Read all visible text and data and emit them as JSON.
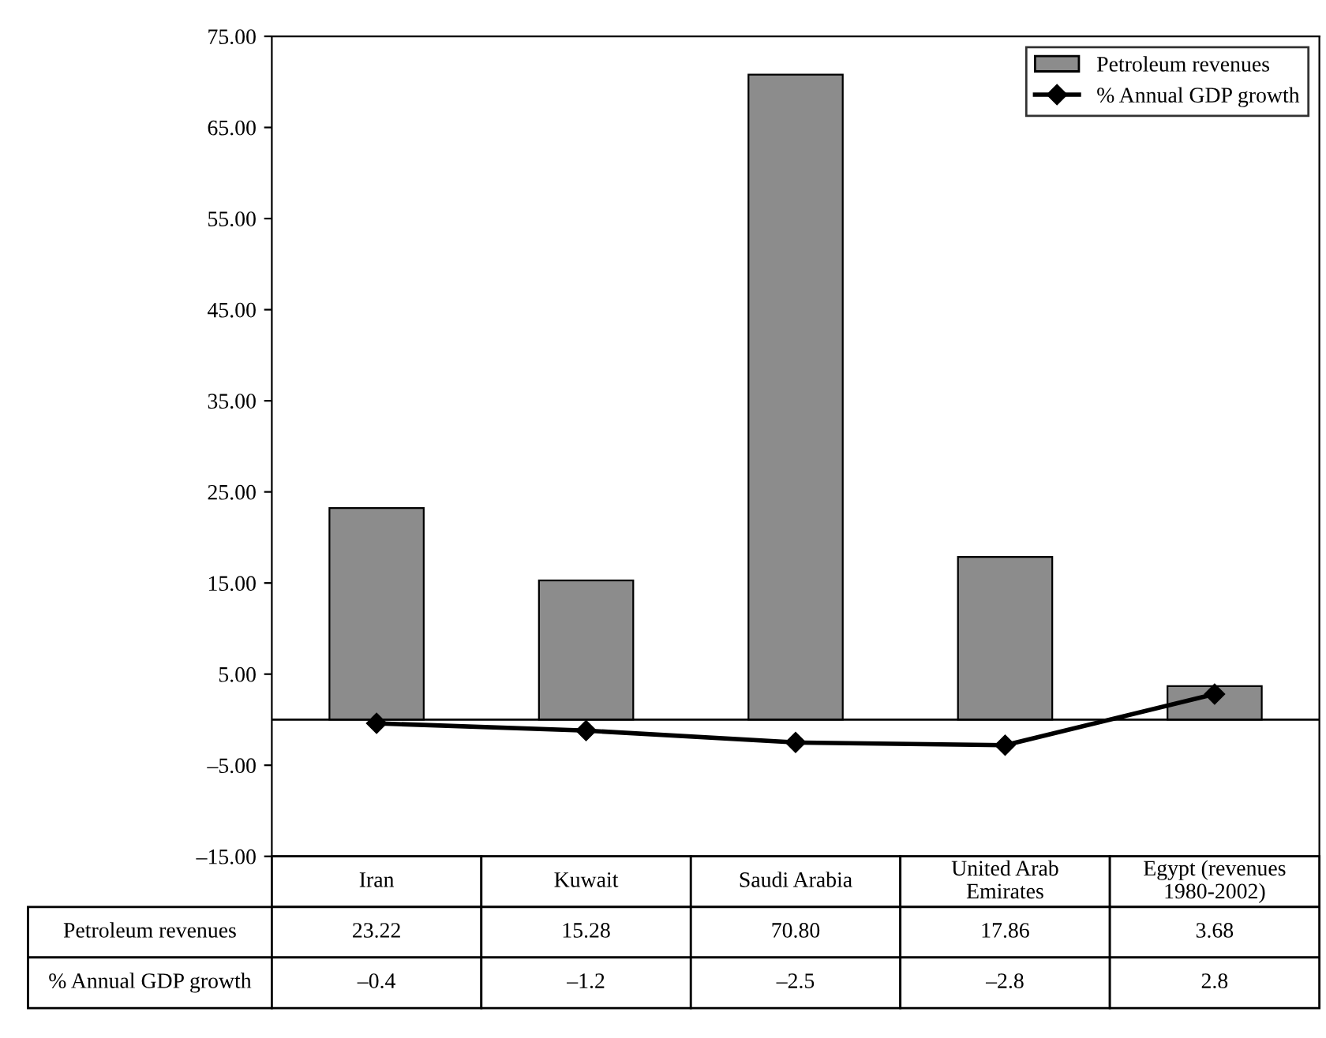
{
  "chart_data": {
    "type": "bar",
    "categories": [
      "Iran",
      "Kuwait",
      "Saudi Arabia",
      "United Arab Emirates",
      "Egypt (revenues 1980-2002)"
    ],
    "series": [
      {
        "name": "Petroleum revenues",
        "color": "#8c8c8c",
        "values": [
          23.22,
          15.28,
          70.8,
          17.86,
          3.68
        ],
        "value_labels": [
          "23.22",
          "15.28",
          "70.80",
          "17.86",
          "3.68"
        ]
      },
      {
        "name": "% Annual GDP growth",
        "type": "line",
        "color": "#000000",
        "marker": "diamond",
        "values": [
          -0.4,
          -1.2,
          -2.5,
          -2.8,
          2.8
        ],
        "value_labels": [
          "–0.4",
          "–1.2",
          "–2.5",
          "–2.8",
          "2.8"
        ]
      }
    ],
    "ylim": [
      -15,
      75
    ],
    "yticks": [
      {
        "value": -15,
        "label": "–15.00"
      },
      {
        "value": -5,
        "label": "–5.00"
      },
      {
        "value": 5,
        "label": "5.00"
      },
      {
        "value": 15,
        "label": "15.00"
      },
      {
        "value": 25,
        "label": "25.00"
      },
      {
        "value": 35,
        "label": "35.00"
      },
      {
        "value": 45,
        "label": "45.00"
      },
      {
        "value": 55,
        "label": "55.00"
      },
      {
        "value": 65,
        "label": "65.00"
      },
      {
        "value": 75,
        "label": "75.00"
      }
    ],
    "ref_lines": [
      {
        "axis": "y",
        "value": 0,
        "color": "#000000"
      }
    ],
    "legend": "top right",
    "grid": false
  }
}
